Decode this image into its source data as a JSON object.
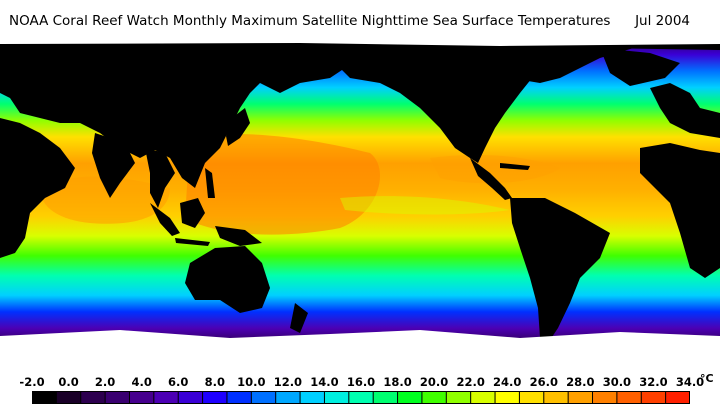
{
  "header": {
    "title": "NOAA Coral Reef Watch Monthly Maximum Satellite Nighttime Sea Surface Temperatures",
    "date": "Jul 2004"
  },
  "map": {
    "projection": "equirectangular",
    "land_color": "#000000",
    "ice_color": "#ffffff"
  },
  "legend": {
    "unit": "°C",
    "ticks": [
      "-2.0",
      "0.0",
      "2.0",
      "4.0",
      "6.0",
      "8.0",
      "10.0",
      "12.0",
      "14.0",
      "16.0",
      "18.0",
      "20.0",
      "22.0",
      "24.0",
      "26.0",
      "28.0",
      "30.0",
      "32.0",
      "34.0"
    ],
    "min": -2,
    "max": 35,
    "colors": [
      "#000000",
      "#1a0028",
      "#2d004f",
      "#3a0070",
      "#46008e",
      "#4c00b4",
      "#3a00d6",
      "#1e00ff",
      "#0030ff",
      "#0070ff",
      "#00a8ff",
      "#00d0ff",
      "#00f0e0",
      "#00ffb0",
      "#00ff70",
      "#00ff20",
      "#40ff00",
      "#90ff00",
      "#d8ff00",
      "#ffff00",
      "#ffe000",
      "#ffc000",
      "#ffa000",
      "#ff8000",
      "#ff6000",
      "#ff4000",
      "#ff2000"
    ]
  }
}
